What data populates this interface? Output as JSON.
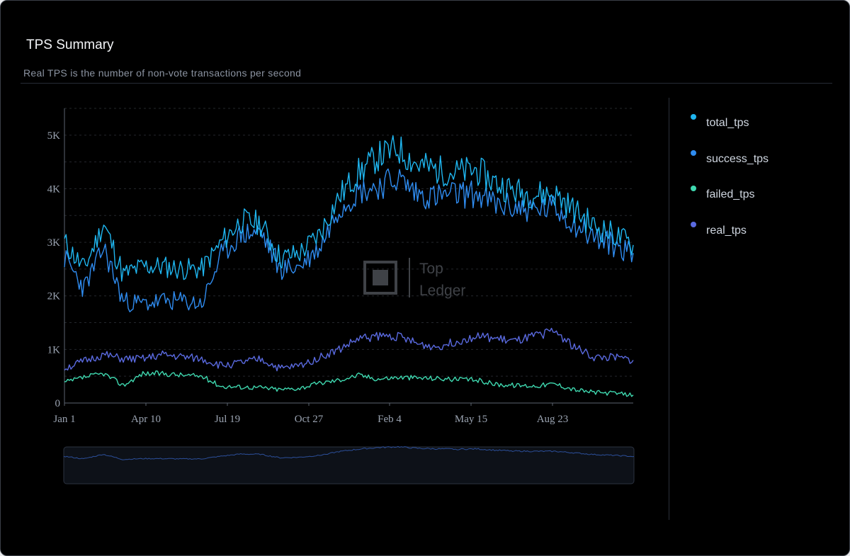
{
  "header": {
    "title": "TPS Summary",
    "subtitle": "Real TPS is the number of non-vote transactions per second"
  },
  "watermark": {
    "line1": "Top",
    "line2": "Ledger"
  },
  "colors": {
    "background": "#000000",
    "total_tps": "#1fb6f0",
    "success_tps": "#2f8cf0",
    "failed_tps": "#3fd9b0",
    "real_tps": "#5a6ae0"
  },
  "legend": {
    "items": [
      {
        "label": "total_tps",
        "color": "#1fb6f0"
      },
      {
        "label": "success_tps",
        "color": "#2f8cf0"
      },
      {
        "label": "failed_tps",
        "color": "#3fd9b0"
      },
      {
        "label": "real_tps",
        "color": "#5a6ae0"
      }
    ]
  },
  "chart_data": {
    "type": "line",
    "title": "TPS Summary",
    "subtitle": "Real TPS is the number of non-vote transactions per second",
    "xlabel": "",
    "ylabel": "",
    "x_ticks": [
      "Jan 1",
      "Apr 10",
      "Jul 19",
      "Oct 27",
      "Feb 4",
      "May 15",
      "Aug 23"
    ],
    "y_ticks": [
      "0",
      "1K",
      "2K",
      "3K",
      "4K",
      "5K"
    ],
    "ylim": [
      0,
      5500
    ],
    "grid": "horizontal dashed",
    "legend_position": "right",
    "has_range_slider": true,
    "x": [
      "Jan 1",
      "Jan 20",
      "Feb 10",
      "Feb 25",
      "Mar 15",
      "Apr 10",
      "May 5",
      "Jun 1",
      "Jun 20",
      "Jul 19",
      "Aug 15",
      "Sep 10",
      "Oct 1",
      "Oct 27",
      "Nov 20",
      "Dec 15",
      "Jan 5",
      "Feb 4",
      "Feb 25",
      "Mar 20",
      "Apr 15",
      "May 15",
      "Jun 10",
      "Jul 5",
      "Jul 25",
      "Aug 23",
      "Sep 20",
      "Oct 15",
      "Nov 10",
      "Nov 30"
    ],
    "series": [
      {
        "name": "total_tps",
        "values": [
          3000,
          2500,
          3350,
          2400,
          2550,
          2550,
          2500,
          2500,
          3000,
          3400,
          3350,
          2700,
          2800,
          3150,
          3850,
          4300,
          4600,
          4750,
          4450,
          4350,
          4300,
          4350,
          4100,
          3950,
          3900,
          3900,
          3600,
          3300,
          3150,
          2950
        ]
      },
      {
        "name": "success_tps",
        "values": [
          2700,
          2150,
          2900,
          1900,
          1850,
          1900,
          1900,
          1850,
          2750,
          3150,
          3200,
          2500,
          2550,
          2900,
          3650,
          3950,
          4050,
          4200,
          3900,
          3850,
          3900,
          3900,
          3700,
          3650,
          3600,
          3650,
          3350,
          3100,
          2950,
          2800
        ]
      },
      {
        "name": "failed_tps",
        "values": [
          380,
          480,
          550,
          330,
          550,
          550,
          520,
          500,
          310,
          300,
          290,
          250,
          280,
          370,
          430,
          520,
          450,
          480,
          470,
          460,
          440,
          430,
          350,
          330,
          320,
          360,
          250,
          200,
          180,
          150
        ]
      },
      {
        "name": "real_tps",
        "values": [
          650,
          780,
          900,
          820,
          820,
          900,
          860,
          820,
          700,
          750,
          820,
          640,
          700,
          850,
          1000,
          1200,
          1250,
          1250,
          1100,
          1050,
          1150,
          1250,
          1200,
          1150,
          1250,
          1350,
          1050,
          850,
          850,
          800
        ]
      }
    ]
  }
}
